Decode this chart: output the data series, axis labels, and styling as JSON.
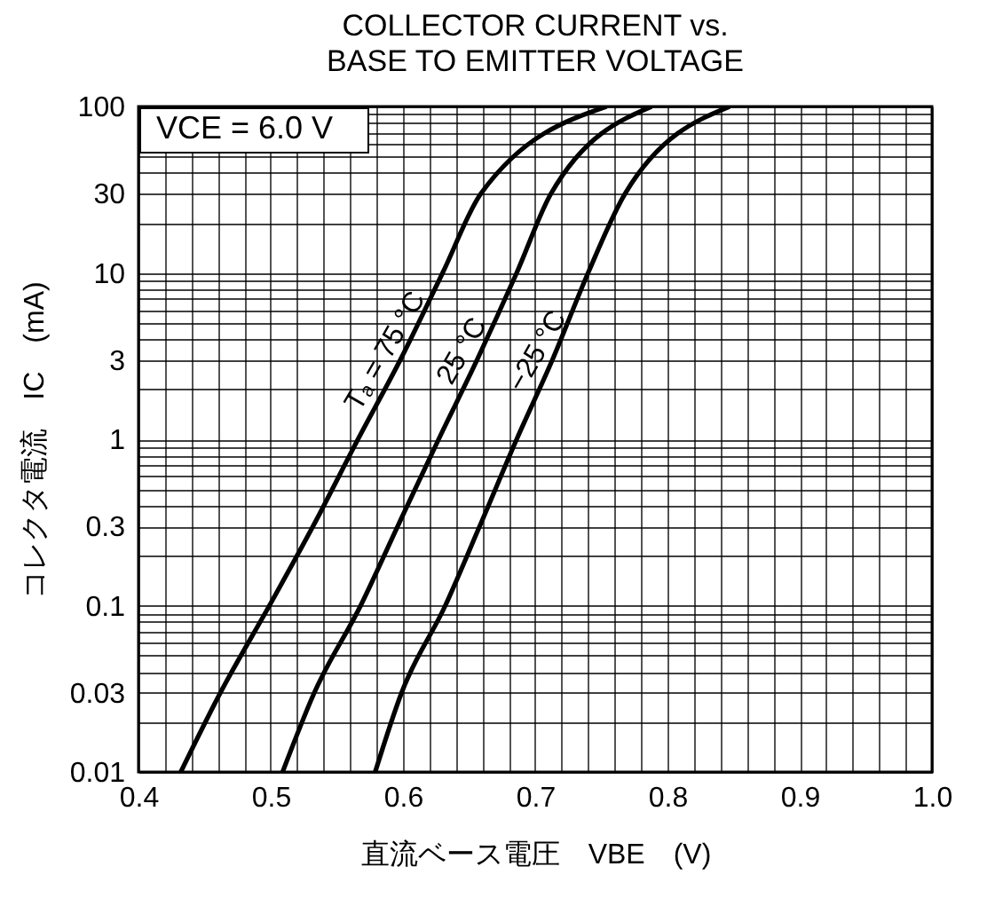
{
  "chart_data": {
    "type": "line",
    "title": "COLLECTOR CURRENT vs.\nBASE TO EMITTER VOLTAGE",
    "xlabel": "直流ベース電圧　VBE　(V)",
    "ylabel": "コレクタ電流　IC　(mA)",
    "annotations": [
      "VCE = 6.0 V"
    ],
    "series": [
      {
        "name": "Tₐ = 75 °C",
        "color": "#000000",
        "x": [
          0.432,
          0.462,
          0.499,
          0.532,
          0.566,
          0.598,
          0.63,
          0.659,
          0.754
        ],
        "values": [
          0.01,
          0.03,
          0.1,
          0.3,
          1,
          3,
          10,
          30,
          100
        ]
      },
      {
        "name": "25 °C",
        "color": "#000000",
        "x": [
          0.509,
          0.533,
          0.568,
          0.596,
          0.627,
          0.656,
          0.686,
          0.712,
          0.788
        ],
        "values": [
          0.01,
          0.03,
          0.1,
          0.3,
          1,
          3,
          10,
          30,
          100
        ]
      },
      {
        "name": "−25 °C",
        "color": "#000000",
        "x": [
          0.579,
          0.599,
          0.632,
          0.658,
          0.686,
          0.713,
          0.74,
          0.768,
          0.847
        ],
        "values": [
          0.01,
          0.03,
          0.1,
          0.3,
          1,
          3,
          10,
          30,
          100
        ]
      }
    ],
    "xlim": [
      0.4,
      1.0
    ],
    "xticks": [
      0.4,
      {
        "value": 0.42,
        "label": null
      },
      {
        "value": 0.44,
        "label": null
      },
      {
        "value": 0.46,
        "label": null
      },
      {
        "value": 0.48,
        "label": null
      },
      0.5,
      {
        "value": 0.52,
        "label": null
      },
      {
        "value": 0.54,
        "label": null
      },
      {
        "value": 0.56,
        "label": null
      },
      {
        "value": 0.58,
        "label": null
      },
      0.6,
      {
        "value": 0.62,
        "label": null
      },
      {
        "value": 0.64,
        "label": null
      },
      {
        "value": 0.66,
        "label": null
      },
      {
        "value": 0.68,
        "label": null
      },
      0.7,
      {
        "value": 0.72,
        "label": null
      },
      {
        "value": 0.74,
        "label": null
      },
      {
        "value": 0.76,
        "label": null
      },
      {
        "value": 0.78,
        "label": null
      },
      0.8,
      {
        "value": 0.82,
        "label": null
      },
      {
        "value": 0.84,
        "label": null
      },
      {
        "value": 0.86,
        "label": null
      },
      {
        "value": 0.88,
        "label": null
      },
      0.9,
      {
        "value": 0.92,
        "label": null
      },
      {
        "value": 0.94,
        "label": null
      },
      {
        "value": 0.96,
        "label": null
      },
      {
        "value": 0.98,
        "label": null
      },
      {
        "value": 1.0,
        "label": "1.0"
      }
    ],
    "ylim": [
      0.01,
      100
    ],
    "yticks": [
      0.01,
      {
        "value": 0.02,
        "label": null
      },
      0.03,
      {
        "value": 0.04,
        "label": null
      },
      {
        "value": 0.05,
        "label": null
      },
      {
        "value": 0.06,
        "label": null
      },
      {
        "value": 0.07,
        "label": null
      },
      {
        "value": 0.08,
        "label": null
      },
      {
        "value": 0.09,
        "label": null
      },
      0.1,
      {
        "value": 0.2,
        "label": null
      },
      0.3,
      {
        "value": 0.4,
        "label": null
      },
      {
        "value": 0.5,
        "label": null
      },
      {
        "value": 0.6,
        "label": null
      },
      {
        "value": 0.7,
        "label": null
      },
      {
        "value": 0.8,
        "label": null
      },
      {
        "value": 0.9,
        "label": null
      },
      1,
      {
        "value": 2,
        "label": null
      },
      3,
      {
        "value": 4,
        "label": null
      },
      {
        "value": 5,
        "label": null
      },
      {
        "value": 6,
        "label": null
      },
      {
        "value": 7,
        "label": null
      },
      {
        "value": 8,
        "label": null
      },
      {
        "value": 9,
        "label": null
      },
      10,
      {
        "value": 20,
        "label": null
      },
      30,
      {
        "value": 40,
        "label": null
      },
      {
        "value": 50,
        "label": null
      },
      {
        "value": 60,
        "label": null
      },
      {
        "value": 70,
        "label": null
      },
      {
        "value": 80,
        "label": null
      },
      {
        "value": 90,
        "label": null
      },
      100
    ],
    "log": "y",
    "grid": true
  }
}
